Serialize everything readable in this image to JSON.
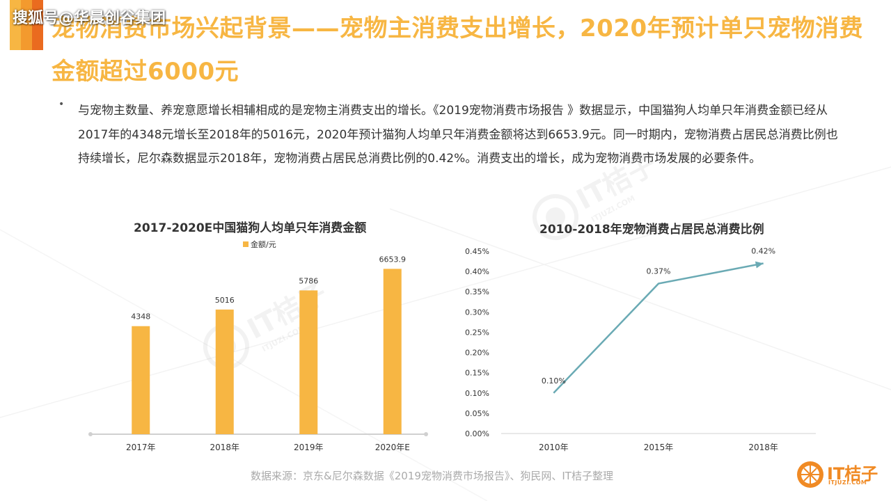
{
  "header": {
    "watermark": "搜狐号@华晨创谷集团",
    "title": "宠物消费市场兴起背景——宠物主消费支出增长，2020年预计单只宠物消费金额超过6000元"
  },
  "bullet": {
    "symbol": "•",
    "text": "与宠物主数量、养宠意愿增长相辅相成的是宠物主消费支出的增长。《2019宠物消费市场报告 》数据显示，中国猫狗人均单只年消费金额已经从2017年的4348元增长至2018年的5016元，2020年预计猫狗人均单只年消费金额将达到6653.9元。同一时期内，宠物消费占居民总消费比例也持续增长，尼尔森数据显示2018年，宠物消费占居民总消费比例的0.42%。消费支出的增长，成为宠物消费市场发展的必要条件。"
  },
  "chart_data": [
    {
      "type": "bar",
      "title": "2017-2020E中国猫狗人均单只年消费金额",
      "legend": "金额/元",
      "legend_position": "top-left",
      "categories": [
        "2017年",
        "2018年",
        "2019年",
        "2020年E"
      ],
      "values": [
        4348,
        5016,
        5786,
        6653.9
      ],
      "value_labels": [
        "4348",
        "5016",
        "5786",
        "6653.9"
      ],
      "ylim": [
        0,
        7000
      ],
      "grid": false,
      "color": "#f7b643"
    },
    {
      "type": "line",
      "title": "2010-2018年宠物消费占居民总消费比例",
      "categories": [
        "2010年",
        "2015年",
        "2018年"
      ],
      "values": [
        0.1,
        0.37,
        0.42
      ],
      "value_labels": [
        "0.10%",
        "0.37%",
        "0.42%"
      ],
      "yticks": [
        "0.00%",
        "0.05%",
        "0.10%",
        "0.15%",
        "0.20%",
        "0.25%",
        "0.30%",
        "0.35%",
        "0.40%",
        "0.45%"
      ],
      "ylim": [
        0,
        0.45
      ],
      "grid": false,
      "color": "#6aaab4"
    }
  ],
  "source": "数据来源：京东&尼尔森数据《2019宠物消费市场报告》、狗民网、IT桔子整理",
  "logo": {
    "text": "IT桔子",
    "sub": "ITJUZI.COM",
    "watermark_text": "IT桔子",
    "watermark_sub": "ITJUZI.COM",
    "color": "#f08a24"
  }
}
